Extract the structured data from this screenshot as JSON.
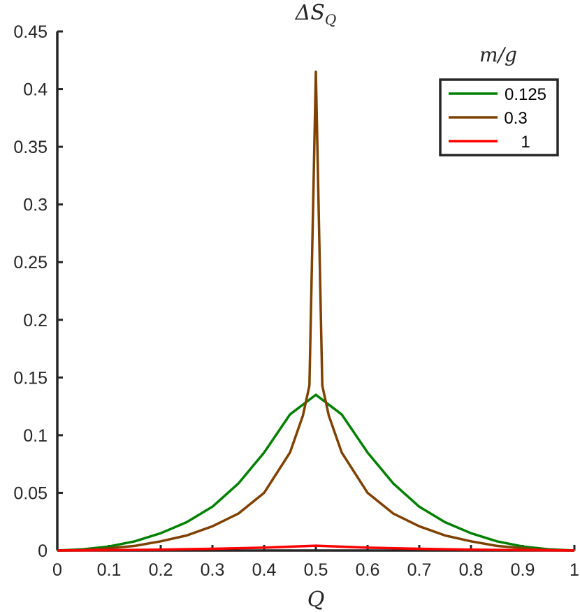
{
  "chart_data": {
    "type": "line",
    "title": "ΔS",
    "title_subscript": "Q",
    "xlabel": "Q",
    "ylabel": "",
    "xlim": [
      0,
      1
    ],
    "ylim": [
      0,
      0.45
    ],
    "xticks": [
      0,
      0.1,
      0.2,
      0.3,
      0.4,
      0.5,
      0.6,
      0.7,
      0.8,
      0.9,
      1
    ],
    "xtick_labels": [
      "0",
      "0.1",
      "0.2",
      "0.3",
      "0.4",
      "0.5",
      "0.6",
      "0.7",
      "0.8",
      "0.9",
      "1"
    ],
    "yticks": [
      0,
      0.05,
      0.1,
      0.15,
      0.2,
      0.25,
      0.3,
      0.35,
      0.4,
      0.45
    ],
    "ytick_labels": [
      "0",
      "0.05",
      "0.1",
      "0.15",
      "0.2",
      "0.25",
      "0.3",
      "0.35",
      "0.4",
      "0.45"
    ],
    "grid": false,
    "legend": {
      "title": "m/g",
      "placement": "top-right"
    },
    "series": [
      {
        "name": "0.125",
        "color": "#008000",
        "x": [
          0,
          0.05,
          0.1,
          0.15,
          0.2,
          0.25,
          0.3,
          0.35,
          0.4,
          0.45,
          0.5,
          0.55,
          0.6,
          0.65,
          0.7,
          0.75,
          0.8,
          0.85,
          0.9,
          0.95,
          1
        ],
        "y": [
          0,
          0.001,
          0.0035,
          0.008,
          0.015,
          0.0245,
          0.038,
          0.058,
          0.085,
          0.118,
          0.135,
          0.118,
          0.085,
          0.058,
          0.038,
          0.0245,
          0.015,
          0.008,
          0.0035,
          0.001,
          0
        ]
      },
      {
        "name": "0.3",
        "color": "#7F4000",
        "x": [
          0,
          0.05,
          0.1,
          0.15,
          0.2,
          0.25,
          0.3,
          0.35,
          0.4,
          0.45,
          0.475,
          0.4875,
          0.5,
          0.5125,
          0.525,
          0.55,
          0.6,
          0.65,
          0.7,
          0.75,
          0.8,
          0.85,
          0.9,
          0.95,
          1
        ],
        "y": [
          0,
          0.0005,
          0.002,
          0.004,
          0.008,
          0.013,
          0.021,
          0.032,
          0.05,
          0.085,
          0.117,
          0.143,
          0.415,
          0.143,
          0.117,
          0.085,
          0.05,
          0.032,
          0.021,
          0.013,
          0.008,
          0.004,
          0.002,
          0.0005,
          0
        ]
      },
      {
        "name": "1",
        "color": "#FF0000",
        "x": [
          0,
          0.1,
          0.2,
          0.3,
          0.4,
          0.5,
          0.6,
          0.7,
          0.8,
          0.9,
          1
        ],
        "y": [
          0,
          0.0003,
          0.0008,
          0.0015,
          0.0025,
          0.0042,
          0.0025,
          0.0015,
          0.0008,
          0.0003,
          0
        ]
      }
    ]
  }
}
